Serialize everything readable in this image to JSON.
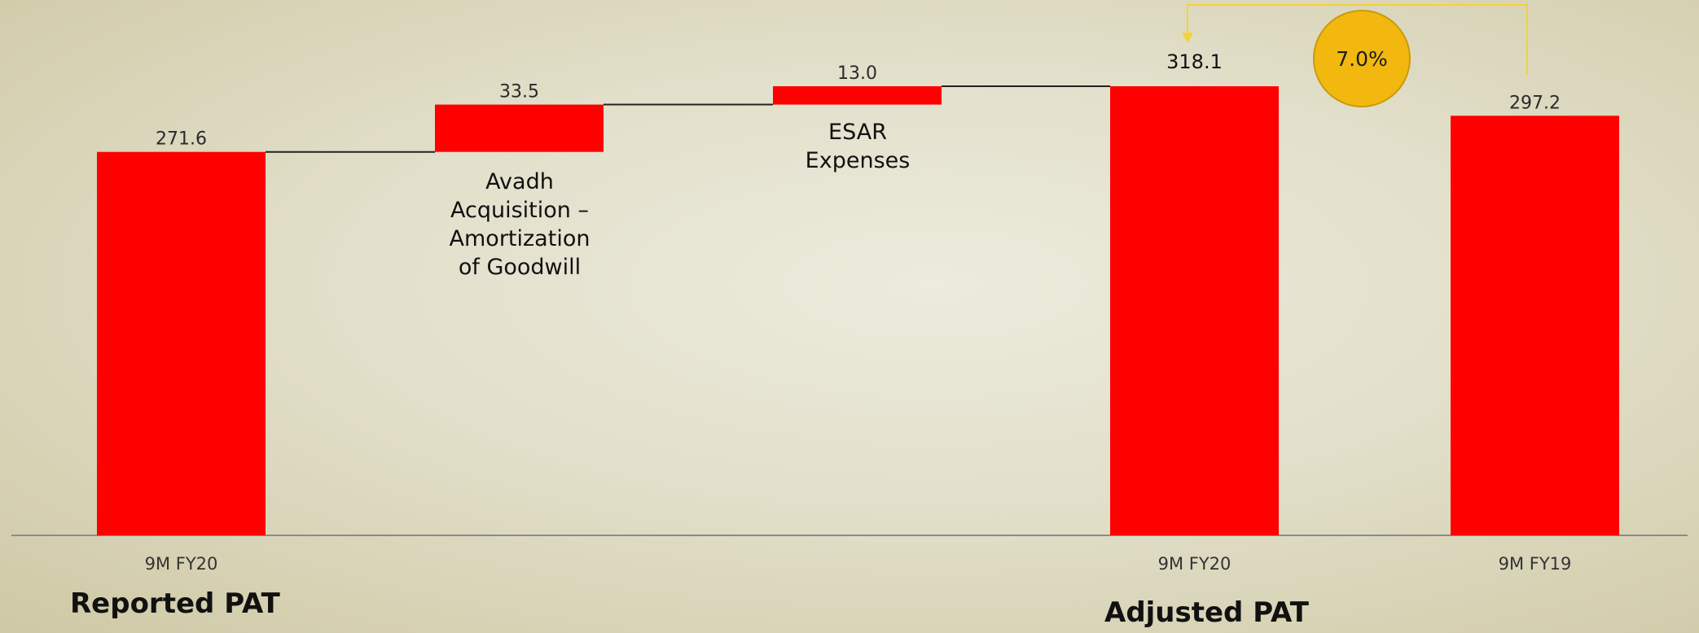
{
  "chart_data": {
    "type": "bar",
    "subtype": "waterfall",
    "categories": [
      "9M FY20",
      "",
      "",
      "9M FY20",
      "9M FY19"
    ],
    "values": [
      271.6,
      33.5,
      13.0,
      318.1,
      297.2
    ],
    "value_labels": [
      "271.6",
      "33.5",
      "13.0",
      "318.1",
      "297.2"
    ],
    "bar_kinds": [
      "total",
      "increment",
      "increment",
      "total",
      "total"
    ],
    "annotations": [
      {
        "for_bar": 1,
        "lines": [
          "Avadh",
          "Acquisition –",
          "Amortization",
          "of Goodwill"
        ]
      },
      {
        "for_bar": 2,
        "lines": [
          "ESAR",
          "Expenses"
        ]
      }
    ],
    "group_labels": [
      "Reported PAT",
      "Adjusted PAT"
    ],
    "growth": {
      "label": "7.0%",
      "from_bar": 4,
      "to_bar": 3
    },
    "bar_color": "#ff0000",
    "connector_color": "#222222",
    "axis_color": "#8a8a8a",
    "arrow_color": "#f5d23a",
    "bubble_color": "#f2b80f",
    "ylim": [
      0,
      318.1
    ],
    "grid": false,
    "legend": "none"
  }
}
